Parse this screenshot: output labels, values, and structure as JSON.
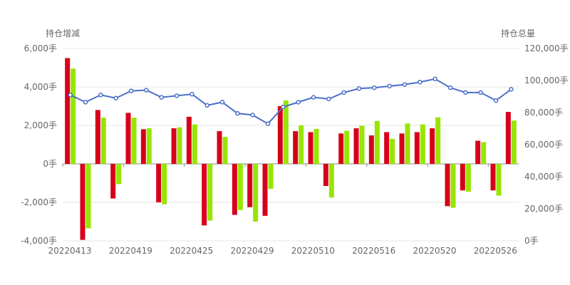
{
  "chart_data": {
    "type": "bar+line",
    "left_axis_title": "持仓增减",
    "right_axis_title": "持仓总量",
    "left_ticks": [
      "6,000手",
      "4,000手",
      "2,000手",
      "0手",
      "-2,000手",
      "-4,000手"
    ],
    "right_ticks": [
      "120,000手",
      "100,000手",
      "80,000手",
      "60,000手",
      "40,000手",
      "20,000手",
      "0手"
    ],
    "x_tick_labels": [
      "20220413",
      "20220419",
      "20220425",
      "20220429",
      "20220510",
      "20220516",
      "20220520",
      "20220526"
    ],
    "left_ylim": [
      -4000,
      6000
    ],
    "right_ylim": [
      0,
      120000
    ],
    "colors": {
      "series_a": "#d7001a",
      "series_b": "#97e500",
      "line": "#4a6fc9",
      "grid": "#e6e6e6",
      "text": "#666666"
    },
    "categories": [
      "20220413",
      "20220414",
      "20220415",
      "20220418",
      "20220419",
      "20220420",
      "20220421",
      "20220422",
      "20220425",
      "20220426",
      "20220427",
      "20220428",
      "20220429",
      "20220505",
      "20220506",
      "20220509",
      "20220510",
      "20220511",
      "20220512",
      "20220513",
      "20220516",
      "20220517",
      "20220518",
      "20220519",
      "20220520",
      "20220523",
      "20220524",
      "20220525",
      "20220526",
      "20220527"
    ],
    "series": [
      {
        "values": [
          5500,
          -3950,
          2800,
          -1800,
          2650,
          1800,
          -2000,
          1850,
          2450,
          -3200,
          1700,
          -2650,
          -2250,
          -2700,
          3000,
          1700,
          1650,
          -1150,
          1580,
          1850,
          1480,
          1650,
          1580,
          1650,
          1850,
          -2200,
          -1380,
          1200,
          -1380,
          2700
        ]
      },
      {
        "values": [
          4950,
          -3350,
          2400,
          -1050,
          2400,
          1850,
          -2100,
          1900,
          2050,
          -2950,
          1400,
          -2400,
          -3000,
          -1300,
          3300,
          2000,
          1820,
          -1750,
          1720,
          1980,
          2230,
          1300,
          2100,
          2050,
          2420,
          -2280,
          -1450,
          1130,
          -1650,
          2250
        ]
      }
    ],
    "line": {
      "values": [
        91000,
        86500,
        91000,
        89000,
        93500,
        94000,
        89500,
        90500,
        91500,
        84500,
        86500,
        79500,
        78500,
        73000,
        83500,
        86500,
        89500,
        88500,
        92500,
        95000,
        95500,
        96500,
        97500,
        99000,
        101000,
        95500,
        92500,
        92500,
        87500,
        94500
      ]
    }
  }
}
